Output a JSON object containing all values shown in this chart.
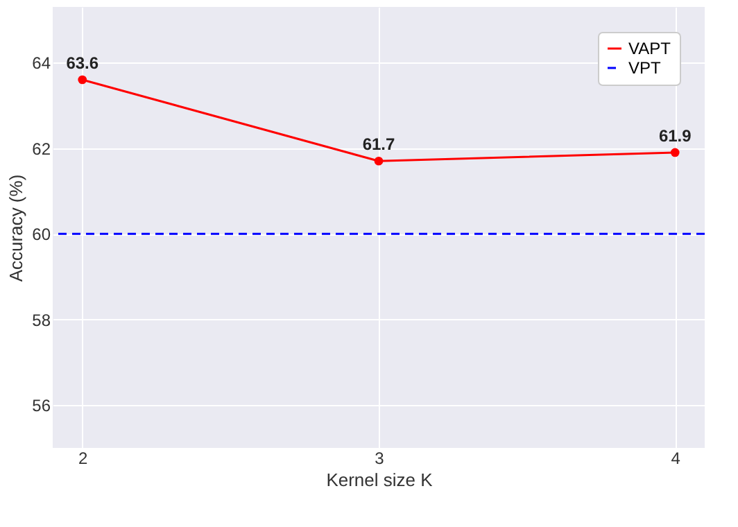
{
  "chart_data": {
    "type": "line",
    "xlabel": "Kernel size K",
    "ylabel": "Accuracy (%)",
    "x": [
      2,
      3,
      4
    ],
    "series": [
      {
        "name": "VAPT",
        "color": "#ff0000",
        "values": [
          63.6,
          61.7,
          61.9
        ]
      }
    ],
    "ref_lines": [
      {
        "axis": "y",
        "value": 60,
        "label": "VPT",
        "color": "#0000ff",
        "line_style": "dashed"
      }
    ],
    "xlim": [
      1.9,
      4.1
    ],
    "xticks": [
      2,
      3,
      4
    ],
    "ylim": [
      55,
      65.3
    ],
    "yticks": [
      56,
      58,
      60,
      62,
      64
    ],
    "grid": true,
    "legend": "top right",
    "marker": "circle",
    "line_style": "solid",
    "data_labels": true
  }
}
